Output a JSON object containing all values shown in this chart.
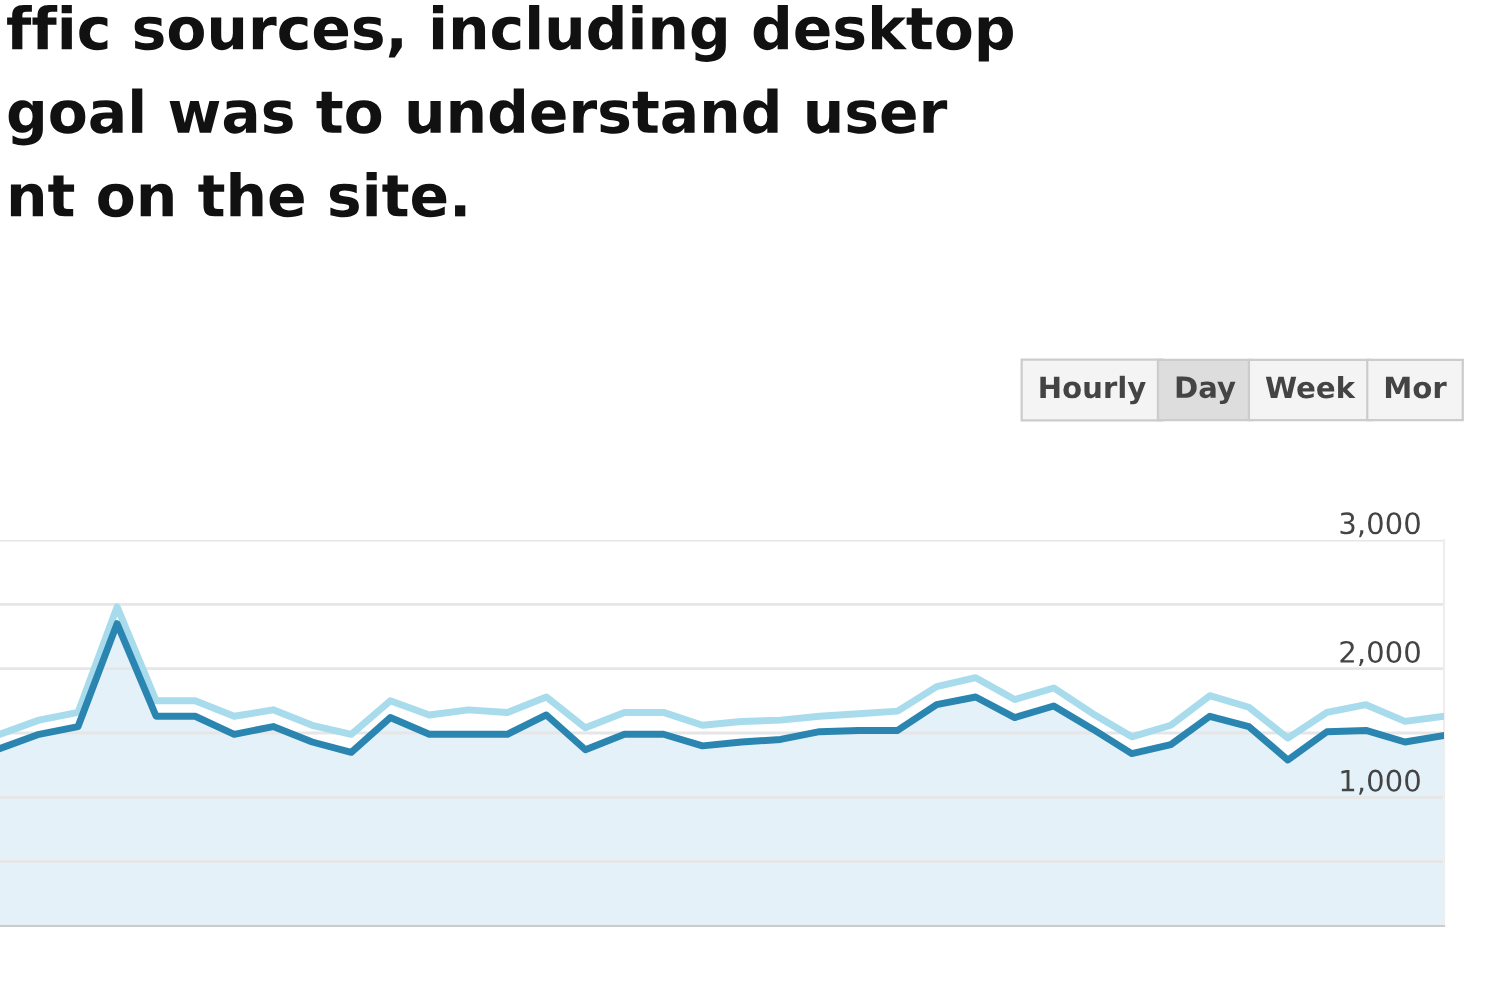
{
  "chart_data": {
    "type": "area",
    "title": "ffic sources, including desktop\ngoal was to understand user\nnt on the site.",
    "categories": [
      null,
      null,
      null,
      null,
      null,
      null,
      null,
      null,
      null,
      null,
      null,
      null,
      null,
      null,
      null,
      null,
      null,
      null,
      null,
      null,
      null,
      null,
      null,
      null,
      null,
      null,
      null,
      null,
      null,
      null,
      null,
      null,
      null,
      null,
      null,
      null,
      null,
      null
    ],
    "series": [
      {
        "type": "line",
        "color": "#a8dcec",
        "values": [
          1490,
          1600,
          1660,
          2480,
          1750,
          1750,
          1630,
          1680,
          1560,
          1490,
          1750,
          1640,
          1680,
          1660,
          1780,
          1540,
          1660,
          1660,
          1560,
          1590,
          1600,
          1630,
          1650,
          1670,
          1860,
          1930,
          1760,
          1850,
          1650,
          1470,
          1560,
          1790,
          1700,
          1460,
          1660,
          1720,
          1590,
          1630
        ]
      },
      {
        "color": "#2a86b0",
        "values": [
          1380,
          1490,
          1550,
          2350,
          1630,
          1630,
          1490,
          1550,
          1430,
          1350,
          1620,
          1490,
          1490,
          1490,
          1640,
          1370,
          1490,
          1490,
          1400,
          1430,
          1450,
          1510,
          1520,
          1520,
          1720,
          1780,
          1620,
          1710,
          1530,
          1340,
          1410,
          1630,
          1550,
          1290,
          1510,
          1520,
          1430,
          1480
        ]
      }
    ],
    "ylim": [
      0,
      3000
    ],
    "yticks": [
      {
        "value": 0,
        "label": null
      },
      {
        "value": 500,
        "label": null
      },
      {
        "value": 1000,
        "label": "1,000"
      },
      {
        "value": 1500,
        "label": null
      },
      {
        "value": 2000,
        "label": "2,000"
      },
      {
        "value": 2500,
        "label": null
      },
      {
        "value": 3000,
        "label": "3,000"
      }
    ],
    "grid": "y",
    "tick_labels": "y",
    "annotations": [
      "Hourly",
      "Day",
      "Week",
      "Mor"
    ]
  }
}
